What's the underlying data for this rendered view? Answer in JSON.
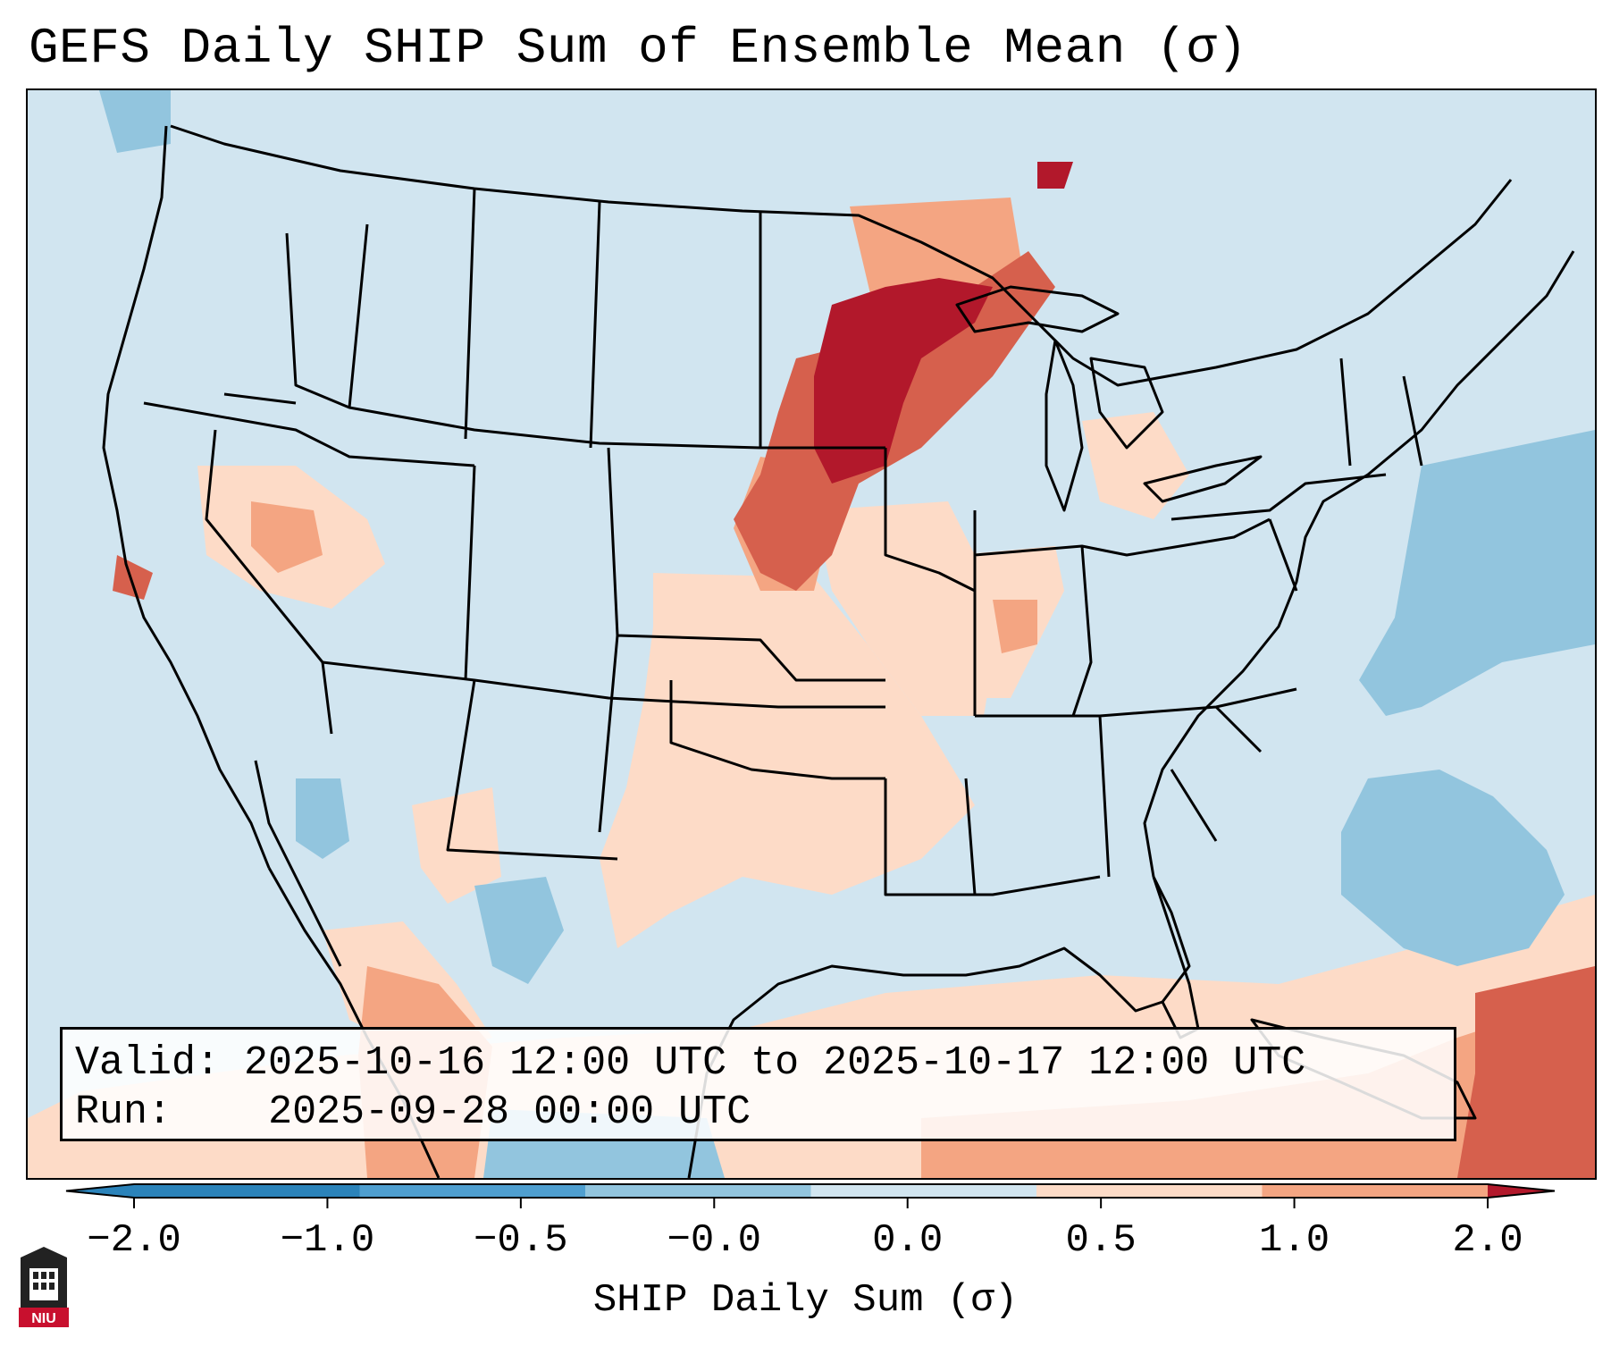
{
  "title": "GEFS Daily SHIP Sum of Ensemble Mean (σ)",
  "info": {
    "valid_label": "Valid:",
    "valid_value": "2025-10-16 12:00 UTC to 2025-10-17 12:00 UTC",
    "run_label": "Run:",
    "run_value": "2025-09-28 00:00 UTC"
  },
  "colorbar": {
    "label": "SHIP Daily Sum (σ)",
    "ticks": [
      "−2.0",
      "−1.0",
      "−0.5",
      "−0.0",
      "0.0",
      "0.5",
      "1.0",
      "2.0"
    ],
    "colors": [
      "#2b83ba",
      "#4f9fd0",
      "#92c5de",
      "#d1e5f0",
      "#fddbc7",
      "#f4a582",
      "#d6604d",
      "#b2182b"
    ]
  },
  "map": {
    "ocean_color": "#d1e5f0",
    "highlight_region": "Upper Midwest / Great Lakes",
    "boundary_color": "#000000"
  },
  "logo": {
    "text": "NIU",
    "color": "#c8102e"
  }
}
